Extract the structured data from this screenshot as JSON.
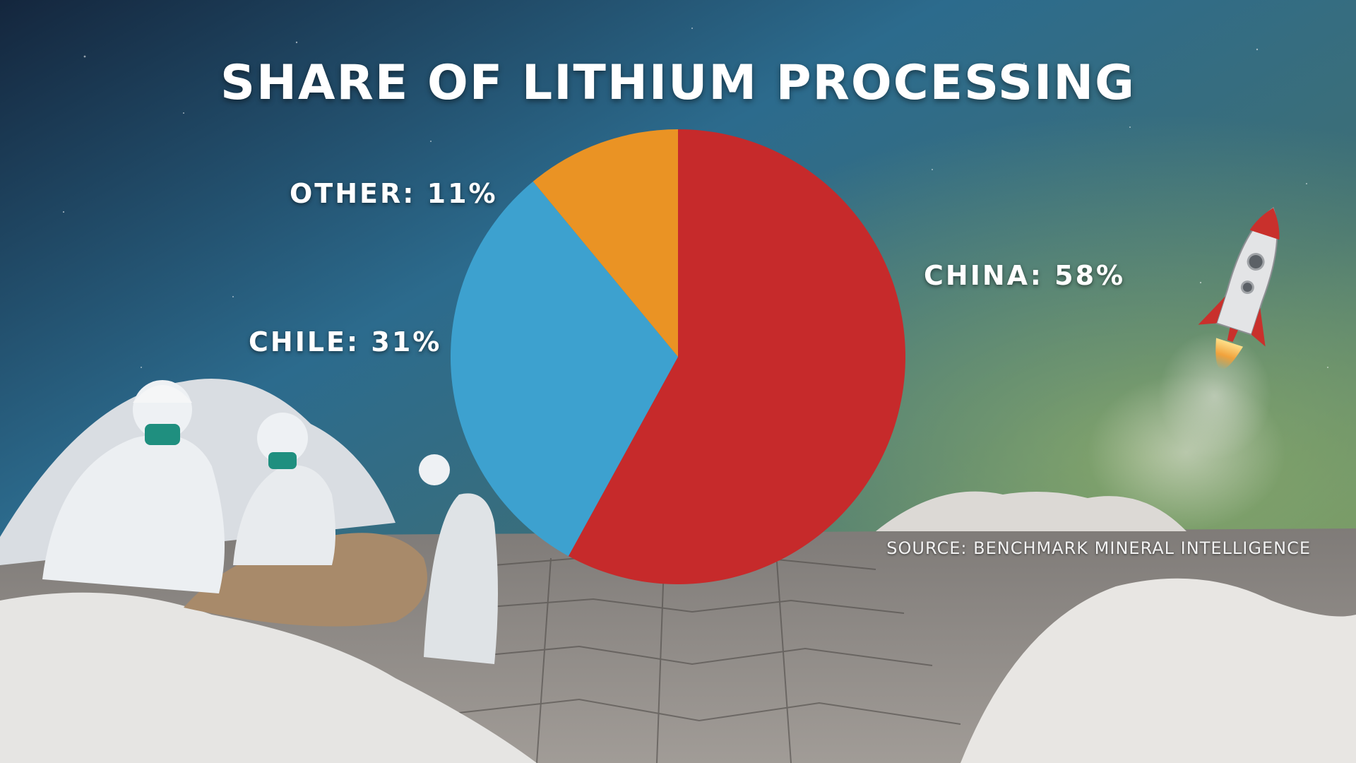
{
  "chart_data": {
    "type": "pie",
    "title": "SHARE OF LITHIUM PROCESSING",
    "slices": [
      {
        "label": "CHINA: 58%",
        "name": "China",
        "value": 58,
        "color": "#c62a2b"
      },
      {
        "label": "CHILE: 31%",
        "name": "Chile",
        "value": 31,
        "color": "#3da1cf"
      },
      {
        "label": "OTHER: 11%",
        "name": "Other",
        "value": 11,
        "color": "#ea9324"
      }
    ],
    "source": "SOURCE: BENCHMARK MINERAL INTELLIGENCE"
  },
  "icons": [
    "rocket-icon"
  ],
  "colors": {
    "sky_top": "#1a2f4a",
    "sky_blue": "#2f6f92",
    "sky_green": "#6d8f5a",
    "ground": "#8a8682",
    "salt": "#e9e7e4"
  }
}
